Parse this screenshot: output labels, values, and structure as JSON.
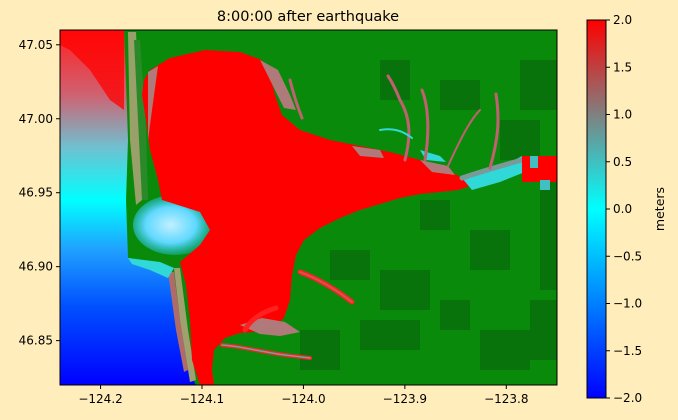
{
  "chart_data": {
    "type": "heatmap",
    "title": "8:00:00 after earthquake",
    "xlabel": "",
    "ylabel": "",
    "xlim": [
      -124.24,
      -123.75
    ],
    "ylim": [
      46.82,
      47.06
    ],
    "x_ticks": [
      -124.2,
      -124.1,
      -124.0,
      -123.9,
      -123.8
    ],
    "x_tick_labels": [
      "−124.2",
      "−124.1",
      "−124.0",
      "−123.9",
      "−123.8"
    ],
    "y_ticks": [
      46.85,
      46.9,
      46.95,
      47.0,
      47.05
    ],
    "y_tick_labels": [
      "46.85",
      "46.90",
      "46.95",
      "47.00",
      "47.05"
    ],
    "colorbar": {
      "label": "meters",
      "range": [
        -2.0,
        2.0
      ],
      "ticks": [
        -2.0,
        -1.5,
        -1.0,
        -0.5,
        0.0,
        0.5,
        1.0,
        1.5,
        2.0
      ],
      "tick_labels": [
        "−2.0",
        "−1.5",
        "−1.0",
        "−0.5",
        "0.0",
        "0.5",
        "1.0",
        "1.5",
        "2.0"
      ],
      "colors": [
        "#0000ff",
        "#00ffff",
        "#808080",
        "#ff0000"
      ]
    },
    "colors": {
      "land": "#0a8a0a",
      "land_dark": "#06600a",
      "water_high": "#ff0000",
      "water_low": "#0000ff"
    },
    "grid": false
  }
}
